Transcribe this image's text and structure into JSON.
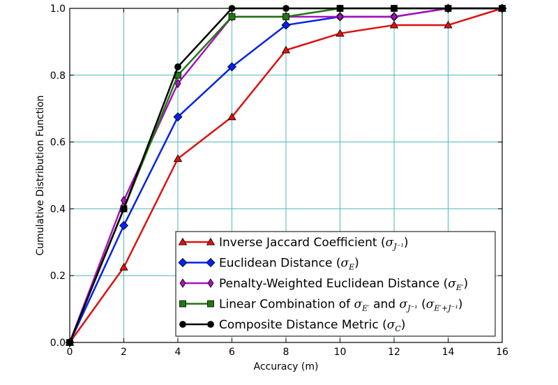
{
  "chart_data": {
    "type": "line",
    "xlabel": "Accuracy (m)",
    "ylabel": "Cumulative Distribution Function",
    "xlim": [
      0,
      16
    ],
    "ylim": [
      0,
      1
    ],
    "xticks": [
      0,
      2,
      4,
      6,
      8,
      10,
      12,
      14,
      16
    ],
    "yticks": [
      0.0,
      0.2,
      0.4,
      0.6,
      0.8,
      1.0
    ],
    "xtick_labels": [
      "0",
      "2",
      "4",
      "6",
      "8",
      "10",
      "12",
      "14",
      "16"
    ],
    "ytick_labels": [
      "0.0",
      "0.2",
      "0.4",
      "0.6",
      "0.8",
      "1.0"
    ],
    "grid": true,
    "grid_color": "#4db8b8",
    "legend_position": "lower-right",
    "x": [
      0,
      2,
      4,
      6,
      8,
      10,
      12,
      14,
      16
    ],
    "series": [
      {
        "key": "jaccard",
        "text": "Inverse Jaccard Coefficient (",
        "math": "σ",
        "sub": "J⁻¹",
        "tail": ")",
        "color": "#dd1111",
        "marker": "triangle",
        "values": [
          0.0,
          0.225,
          0.55,
          0.675,
          0.875,
          0.925,
          0.95,
          0.95,
          1.0
        ]
      },
      {
        "key": "euclidean",
        "text": "Euclidean Distance (",
        "math": "σ",
        "sub": "E",
        "tail": ")",
        "color": "#0022ee",
        "marker": "diamond",
        "values": [
          0.0,
          0.35,
          0.675,
          0.825,
          0.95,
          0.975,
          0.975,
          1.0,
          1.0
        ]
      },
      {
        "key": "penalty",
        "text": "Penalty-Weighted Euclidean Distance (",
        "math": "σ",
        "sub": "E′",
        "tail": ")",
        "color": "#aa11bb",
        "marker": "thin_diamond",
        "values": [
          0.0,
          0.425,
          0.775,
          0.975,
          0.975,
          0.975,
          0.975,
          1.0,
          1.0
        ]
      },
      {
        "key": "linear",
        "text": "Linear Combination of ",
        "math": "σ",
        "sub": "E′",
        "mid": " and ",
        "math2": "σ",
        "sub2": "J⁻¹",
        "mid2": " (",
        "math3": "σ",
        "sub3": "E′+J⁻¹",
        "tail": ")",
        "color": "#227711",
        "marker": "square",
        "values": [
          0.0,
          0.4,
          0.8,
          0.975,
          0.975,
          1.0,
          1.0,
          1.0,
          1.0
        ]
      },
      {
        "key": "composite",
        "text": "Composite Distance Metric (",
        "math": "σ",
        "sub": "C",
        "tail": ")",
        "color": "#000000",
        "marker": "circle",
        "values": [
          0.0,
          0.4,
          0.825,
          1.0,
          1.0,
          1.0,
          1.0,
          1.0,
          1.0
        ]
      }
    ]
  }
}
